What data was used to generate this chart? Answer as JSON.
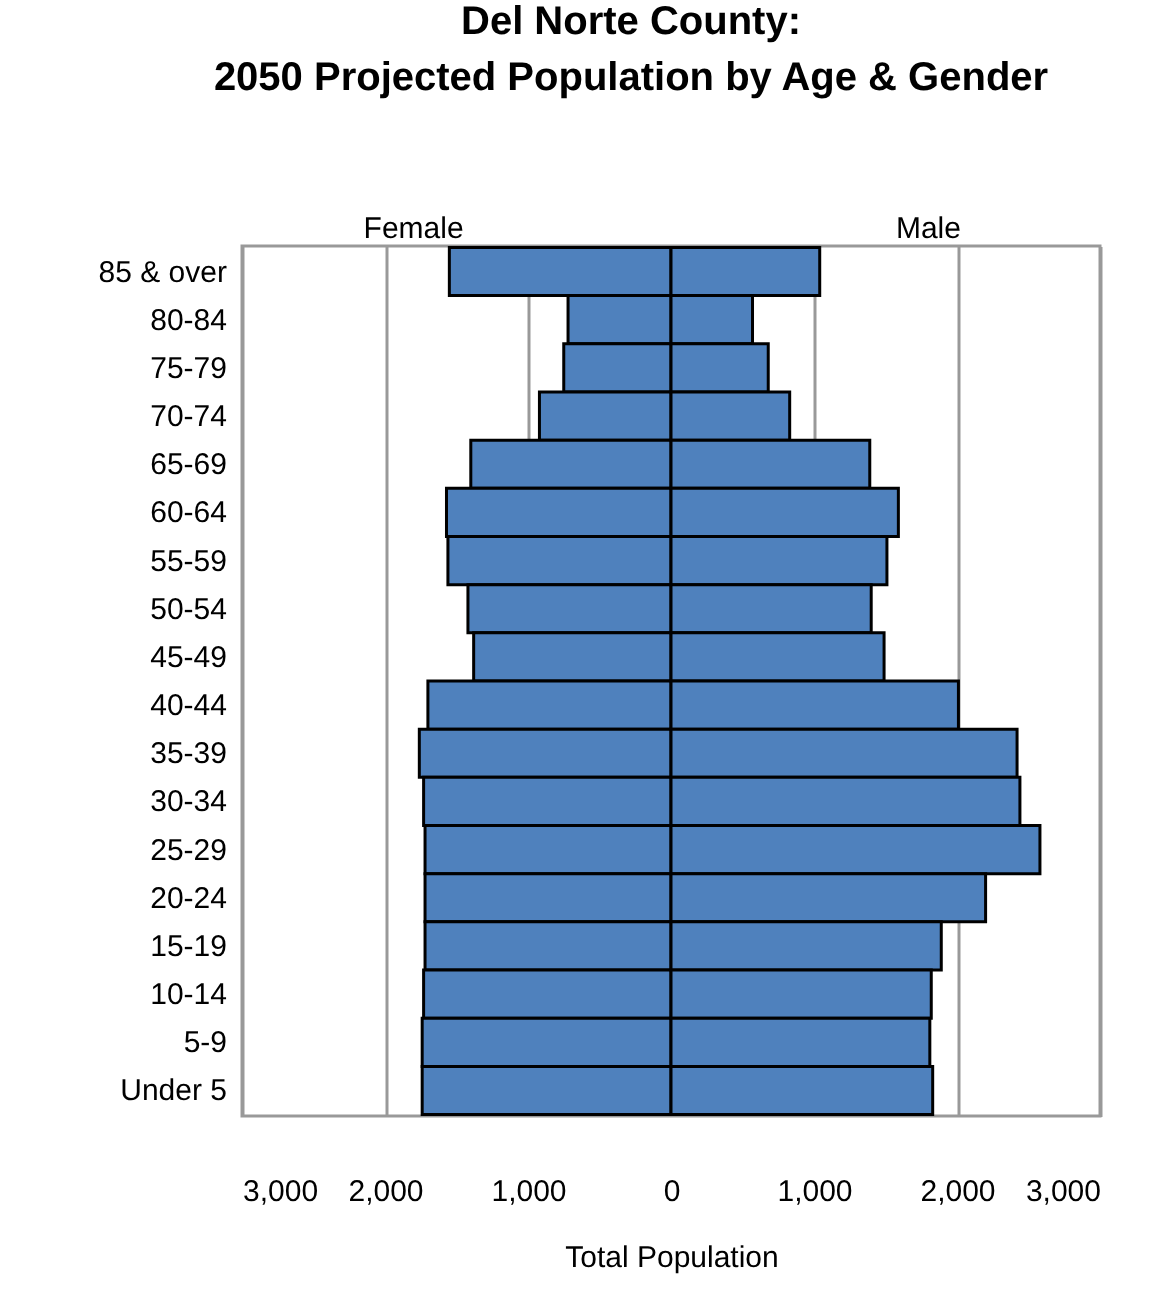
{
  "chart_data": {
    "type": "bar",
    "orientation": "horizontal",
    "title": "Del Norte County:\n2050 Projected Population by Age & Gender",
    "xlabel": "Total Population",
    "categories": [
      "85 & over",
      "80-84",
      "75-79",
      "70-74",
      "65-69",
      "60-64",
      "55-59",
      "50-54",
      "45-49",
      "40-44",
      "35-39",
      "30-34",
      "25-29",
      "20-24",
      "15-19",
      "10-14",
      "5-9",
      "Under 5"
    ],
    "series": [
      {
        "name": "Female",
        "color": "#4f81bd",
        "values": [
          -1550,
          -720,
          -750,
          -920,
          -1400,
          -1570,
          -1560,
          -1420,
          -1380,
          -1700,
          -1760,
          -1730,
          -1720,
          -1720,
          -1720,
          -1730,
          -1740,
          -1740
        ]
      },
      {
        "name": "Male",
        "color": "#4f81bd",
        "values": [
          1040,
          570,
          680,
          830,
          1390,
          1590,
          1510,
          1400,
          1490,
          2010,
          2420,
          2440,
          2580,
          2200,
          1890,
          1820,
          1810,
          1830
        ]
      }
    ],
    "xlim": [
      -3000,
      3000
    ],
    "xticks": [
      {
        "value": -3000,
        "label": "3,000"
      },
      {
        "value": -2000,
        "label": "2,000"
      },
      {
        "value": -1000,
        "label": "1,000"
      },
      0,
      {
        "value": 1000,
        "label": "1,000"
      },
      {
        "value": 2000,
        "label": "2,000"
      },
      {
        "value": 3000,
        "label": "3,000"
      }
    ],
    "stacked": true,
    "grid": "x",
    "legend": false
  }
}
